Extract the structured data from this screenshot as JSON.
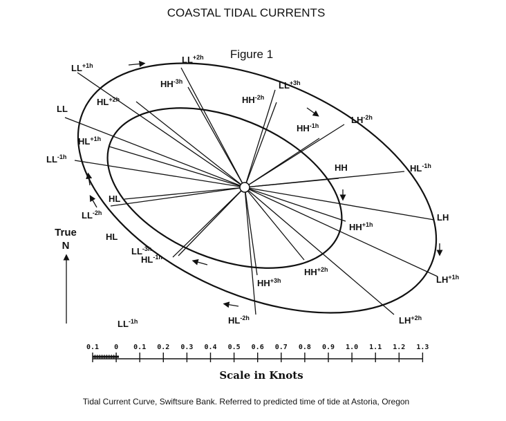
{
  "title": "COASTAL TIDAL CURRENTS",
  "figure_label": "Figure 1",
  "caption": "Tidal Current Curve, Swiftsure Bank.  Referred to predicted time of tide at Astoria, Oregon",
  "north_label": {
    "line1": "True",
    "line2": "N"
  },
  "scale": {
    "label": "Scale in Knots",
    "ticks": [
      "0.1",
      "0",
      "0.1",
      "0.2",
      "0.3",
      "0.4",
      "0.5",
      "0.6",
      "0.7",
      "0.8",
      "0.9",
      "1.0",
      "1.1",
      "1.2",
      "1.3"
    ]
  },
  "outer_curve_labels": [
    {
      "base": "LL",
      "sup": "+1h"
    },
    {
      "base": "LL",
      "sup": "+2h"
    },
    {
      "base": "LL",
      "sup": "+3h"
    },
    {
      "base": "LH",
      "sup": "-2h"
    },
    {
      "base": "HL",
      "sup": "-1h"
    },
    {
      "base": "LH",
      "sup": ""
    },
    {
      "base": "LH",
      "sup": "+1h"
    },
    {
      "base": "LH",
      "sup": "+2h"
    },
    {
      "base": "HL",
      "sup": "-2h"
    },
    {
      "base": "LL",
      "sup": "-3h"
    },
    {
      "base": "LL",
      "sup": "-2h"
    },
    {
      "base": "LL",
      "sup": "-1h"
    },
    {
      "base": "LL",
      "sup": ""
    }
  ],
  "inner_curve_labels": [
    {
      "base": "HL",
      "sup": "+2h"
    },
    {
      "base": "HH",
      "sup": "-3h"
    },
    {
      "base": "HH",
      "sup": "-2h"
    },
    {
      "base": "HH",
      "sup": "-1h"
    },
    {
      "base": "HH",
      "sup": ""
    },
    {
      "base": "HH",
      "sup": "+1h"
    },
    {
      "base": "HH",
      "sup": "+2h"
    },
    {
      "base": "HH",
      "sup": "+3h"
    },
    {
      "base": "HL",
      "sup": "-1h"
    },
    {
      "base": "HL",
      "sup": ""
    },
    {
      "base": "HL",
      "sup": "+1h"
    }
  ],
  "extra_labels": [
    {
      "base": "HL",
      "sup": ""
    },
    {
      "base": "LL",
      "sup": "-1h"
    }
  ]
}
